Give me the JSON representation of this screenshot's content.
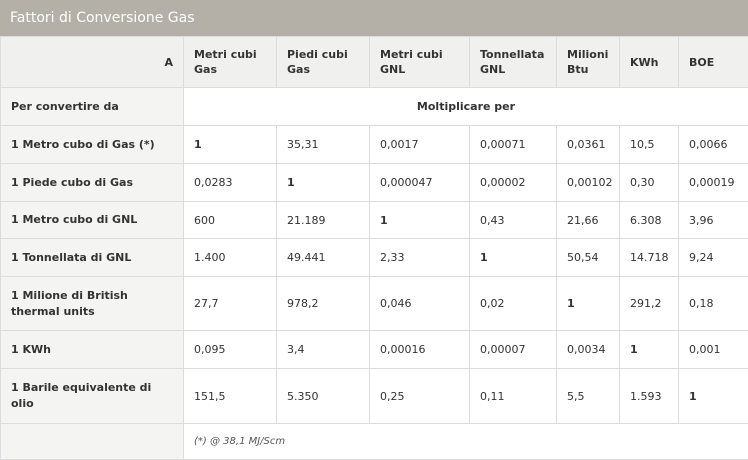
{
  "title": "Fattori di Conversione Gas",
  "header": {
    "corner": "A",
    "columns": [
      "Metri cubi Gas",
      "Piedi cubi Gas",
      "Metri cubi GNL",
      "Tonnellata GNL",
      "Milioni Btu",
      "KWh",
      "BOE"
    ]
  },
  "subheader": {
    "label": "Per convertire da",
    "multiply": "Moltiplicare per"
  },
  "rows": [
    {
      "label": "1 Metro cubo di Gas (*)",
      "values": [
        "1",
        "35,31",
        "0,0017",
        "0,00071",
        "0,0361",
        "10,5",
        "0,0066"
      ]
    },
    {
      "label": "1 Piede cubo di Gas",
      "values": [
        "0,0283",
        "1",
        "0,000047",
        "0,00002",
        "0,00102",
        "0,30",
        "0,00019"
      ]
    },
    {
      "label": "1 Metro cubo di GNL",
      "values": [
        "600",
        "21.189",
        "1",
        "0,43",
        "21,66",
        "6.308",
        "3,96"
      ]
    },
    {
      "label": "1 Tonnellata di GNL",
      "values": [
        "1.400",
        "49.441",
        "2,33",
        "1",
        "50,54",
        "14.718",
        "9,24"
      ]
    },
    {
      "label": "1 Milione di British thermal units",
      "values": [
        "27,7",
        "978,2",
        "0,046",
        "0,02",
        "1",
        "291,2",
        "0,18"
      ]
    },
    {
      "label": "1 KWh",
      "values": [
        "0,095",
        "3,4",
        "0,00016",
        "0,00007",
        "0,0034",
        "1",
        "0,001"
      ]
    },
    {
      "label": "1 Barile equivalente di olio",
      "values": [
        "151,5",
        "5.350",
        "0,25",
        "0,11",
        "5,5",
        "1.593",
        "1"
      ]
    }
  ],
  "footnote": "(*) @ 38,1 MJ/Scm"
}
